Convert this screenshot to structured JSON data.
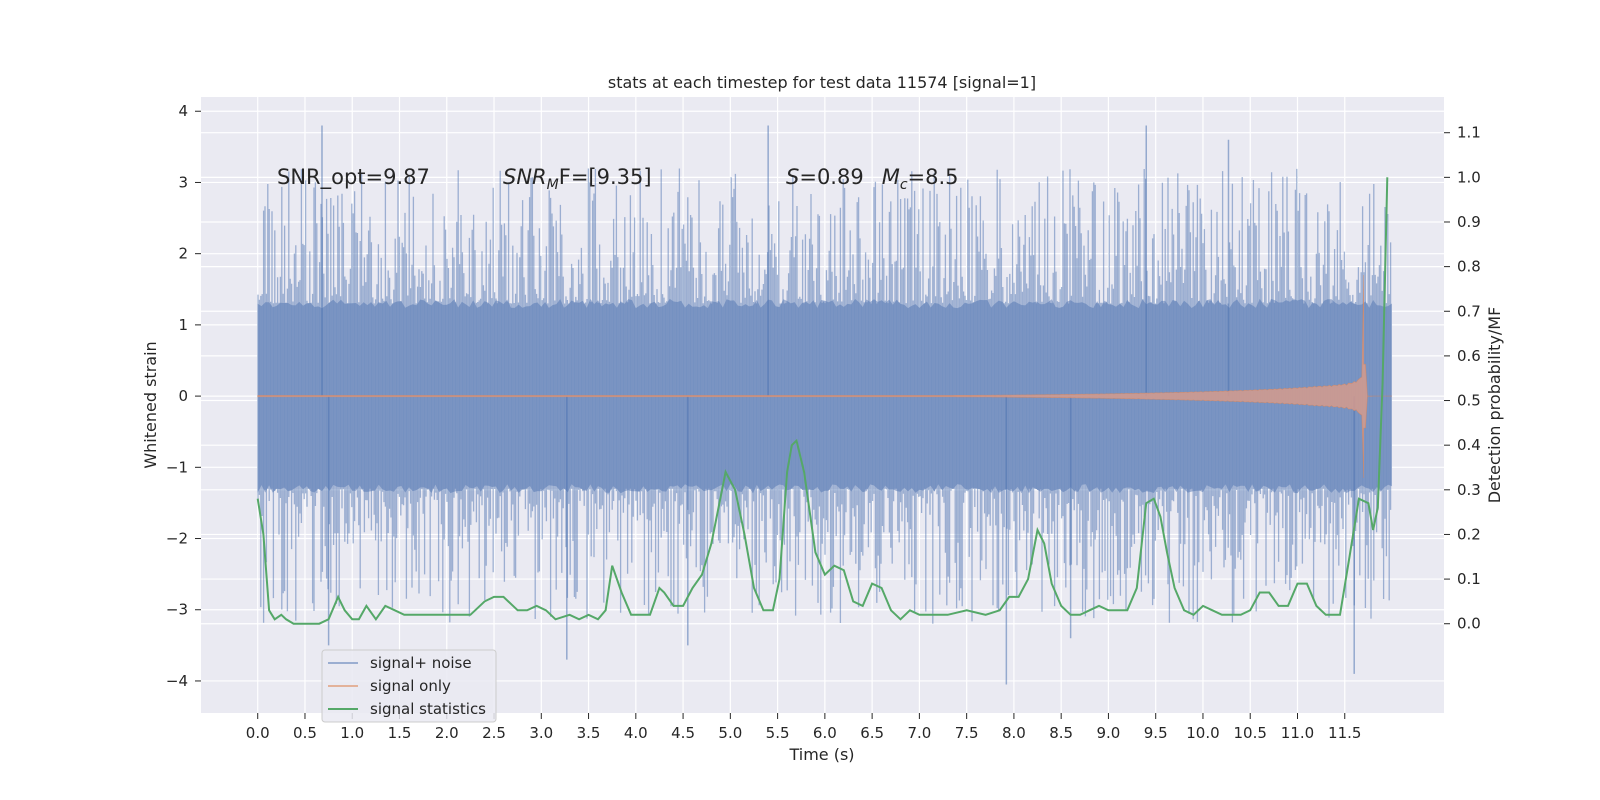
{
  "chart_data": {
    "type": "line",
    "title": "stats at each timestep for test data 11574 [signal=1]",
    "xlabel": "Time (s)",
    "ylabel_left": "Whitened strain",
    "ylabel_right": "Detection probability/MF",
    "xlim": [
      -0.6,
      12.55
    ],
    "ylim_left": [
      -4.45,
      4.2
    ],
    "ylim_right": [
      -0.2,
      1.18
    ],
    "grid": true,
    "x_ticks": [
      0.0,
      0.5,
      1.0,
      1.5,
      2.0,
      2.5,
      3.0,
      3.5,
      4.0,
      4.5,
      5.0,
      5.5,
      6.0,
      6.5,
      7.0,
      7.5,
      8.0,
      8.5,
      9.0,
      9.5,
      10.0,
      10.5,
      11.0,
      11.5
    ],
    "x_tick_labels": [
      "0.0",
      "0.5",
      "1.0",
      "1.5",
      "2.0",
      "2.5",
      "3.0",
      "3.5",
      "4.0",
      "4.5",
      "5.0",
      "5.5",
      "6.0",
      "6.5",
      "7.0",
      "7.5",
      "8.0",
      "8.5",
      "9.0",
      "9.5",
      "10.0",
      "10.5",
      "11.0",
      "11.5"
    ],
    "y_left_ticks": [
      -4,
      -3,
      -2,
      -1,
      0,
      1,
      2,
      3,
      4
    ],
    "y_left_tick_labels": [
      "−4",
      "−3",
      "−2",
      "−1",
      "0",
      "1",
      "2",
      "3",
      "4"
    ],
    "y_right_ticks": [
      0.0,
      0.1,
      0.2,
      0.3,
      0.4,
      0.5,
      0.6,
      0.7,
      0.8,
      0.9,
      1.0,
      1.1
    ],
    "y_right_tick_labels": [
      "0.0",
      "0.1",
      "0.2",
      "0.3",
      "0.4",
      "0.5",
      "0.6",
      "0.7",
      "0.8",
      "0.9",
      "1.0",
      "1.1"
    ],
    "annotations": [
      {
        "text": "SNR_opt=9.87",
        "x": 0.2,
        "y": 3.0
      },
      {
        "text": "SNR_MF=[9.35]",
        "x": 2.6,
        "y": 3.0
      },
      {
        "text": "S=0.89   M_c=8.5",
        "x": 5.6,
        "y": 3.0
      }
    ],
    "annotation_display": {
      "snr_opt": "SNR_opt=9.87",
      "snr_mf_main": "SNR",
      "snr_mf_sub": "M",
      "snr_mf_rest": "F=[9.35]",
      "s_symbol": "S",
      "s_value": "=0.89",
      "mc_symbol": "M",
      "mc_sub": "c",
      "mc_value": "=8.5"
    },
    "legend": {
      "location": "lower-left",
      "entries": [
        "signal+ noise",
        "signal only",
        "signal statistics"
      ]
    },
    "series": [
      {
        "name": "signal+ noise",
        "axis": "left",
        "color": "#4c72b0",
        "kind": "noise-strain",
        "t_range": [
          0.0,
          12.0
        ],
        "core_amplitude": 1.3,
        "typical_envelope": [
          -2.5,
          2.5
        ],
        "extremes": [
          {
            "x": 0.68,
            "y": 3.8
          },
          {
            "x": 0.75,
            "y": -3.5
          },
          {
            "x": 3.27,
            "y": -3.7
          },
          {
            "x": 4.55,
            "y": -3.5
          },
          {
            "x": 5.4,
            "y": 3.8
          },
          {
            "x": 7.92,
            "y": -4.05
          },
          {
            "x": 8.6,
            "y": -3.4
          },
          {
            "x": 9.4,
            "y": 3.8
          },
          {
            "x": 10.27,
            "y": 3.6
          },
          {
            "x": 11.6,
            "y": -3.9
          }
        ]
      },
      {
        "name": "signal only",
        "axis": "left",
        "color": "#dd8452",
        "kind": "chirp",
        "t_range": [
          0.0,
          12.0
        ],
        "merger_time": 11.7,
        "peak_amplitude": 1.7
      },
      {
        "name": "signal statistics",
        "axis": "right",
        "color": "#55a868",
        "x": [
          0.0,
          0.06,
          0.12,
          0.18,
          0.25,
          0.3,
          0.38,
          0.46,
          0.55,
          0.65,
          0.75,
          0.85,
          0.92,
          1.0,
          1.07,
          1.15,
          1.25,
          1.35,
          1.45,
          1.55,
          1.65,
          1.75,
          1.85,
          2.0,
          2.1,
          2.25,
          2.4,
          2.5,
          2.6,
          2.75,
          2.85,
          2.95,
          3.05,
          3.15,
          3.3,
          3.4,
          3.5,
          3.6,
          3.68,
          3.75,
          3.85,
          3.95,
          4.05,
          4.15,
          4.25,
          4.3,
          4.4,
          4.5,
          4.6,
          4.7,
          4.8,
          4.95,
          5.05,
          5.15,
          5.25,
          5.35,
          5.45,
          5.52,
          5.6,
          5.65,
          5.7,
          5.78,
          5.9,
          6.0,
          6.1,
          6.2,
          6.3,
          6.4,
          6.5,
          6.6,
          6.7,
          6.8,
          6.9,
          7.0,
          7.15,
          7.3,
          7.5,
          7.7,
          7.85,
          7.95,
          8.05,
          8.15,
          8.25,
          8.32,
          8.4,
          8.5,
          8.6,
          8.7,
          8.8,
          8.9,
          9.0,
          9.1,
          9.2,
          9.3,
          9.4,
          9.48,
          9.55,
          9.62,
          9.7,
          9.8,
          9.9,
          10.0,
          10.1,
          10.2,
          10.3,
          10.4,
          10.5,
          10.6,
          10.7,
          10.8,
          10.9,
          11.0,
          11.1,
          11.2,
          11.3,
          11.45,
          11.55,
          11.65,
          11.75,
          11.8,
          11.85,
          11.9,
          11.95
        ],
        "y": [
          0.28,
          0.2,
          0.03,
          0.01,
          0.02,
          0.01,
          0.0,
          0.0,
          0.0,
          0.0,
          0.01,
          0.06,
          0.03,
          0.01,
          0.01,
          0.04,
          0.01,
          0.04,
          0.03,
          0.02,
          0.02,
          0.02,
          0.02,
          0.02,
          0.02,
          0.02,
          0.05,
          0.06,
          0.06,
          0.03,
          0.03,
          0.04,
          0.03,
          0.01,
          0.02,
          0.01,
          0.02,
          0.01,
          0.03,
          0.13,
          0.07,
          0.02,
          0.02,
          0.02,
          0.08,
          0.07,
          0.04,
          0.04,
          0.08,
          0.11,
          0.18,
          0.34,
          0.3,
          0.2,
          0.08,
          0.03,
          0.03,
          0.1,
          0.34,
          0.4,
          0.41,
          0.34,
          0.16,
          0.11,
          0.13,
          0.12,
          0.05,
          0.04,
          0.09,
          0.08,
          0.03,
          0.01,
          0.03,
          0.02,
          0.02,
          0.02,
          0.03,
          0.02,
          0.03,
          0.06,
          0.06,
          0.1,
          0.21,
          0.18,
          0.09,
          0.04,
          0.02,
          0.02,
          0.03,
          0.04,
          0.03,
          0.03,
          0.03,
          0.08,
          0.27,
          0.28,
          0.24,
          0.16,
          0.08,
          0.03,
          0.02,
          0.04,
          0.03,
          0.02,
          0.02,
          0.02,
          0.03,
          0.07,
          0.07,
          0.04,
          0.04,
          0.09,
          0.09,
          0.04,
          0.02,
          0.02,
          0.15,
          0.28,
          0.27,
          0.21,
          0.26,
          0.54,
          1.0
        ]
      }
    ]
  }
}
